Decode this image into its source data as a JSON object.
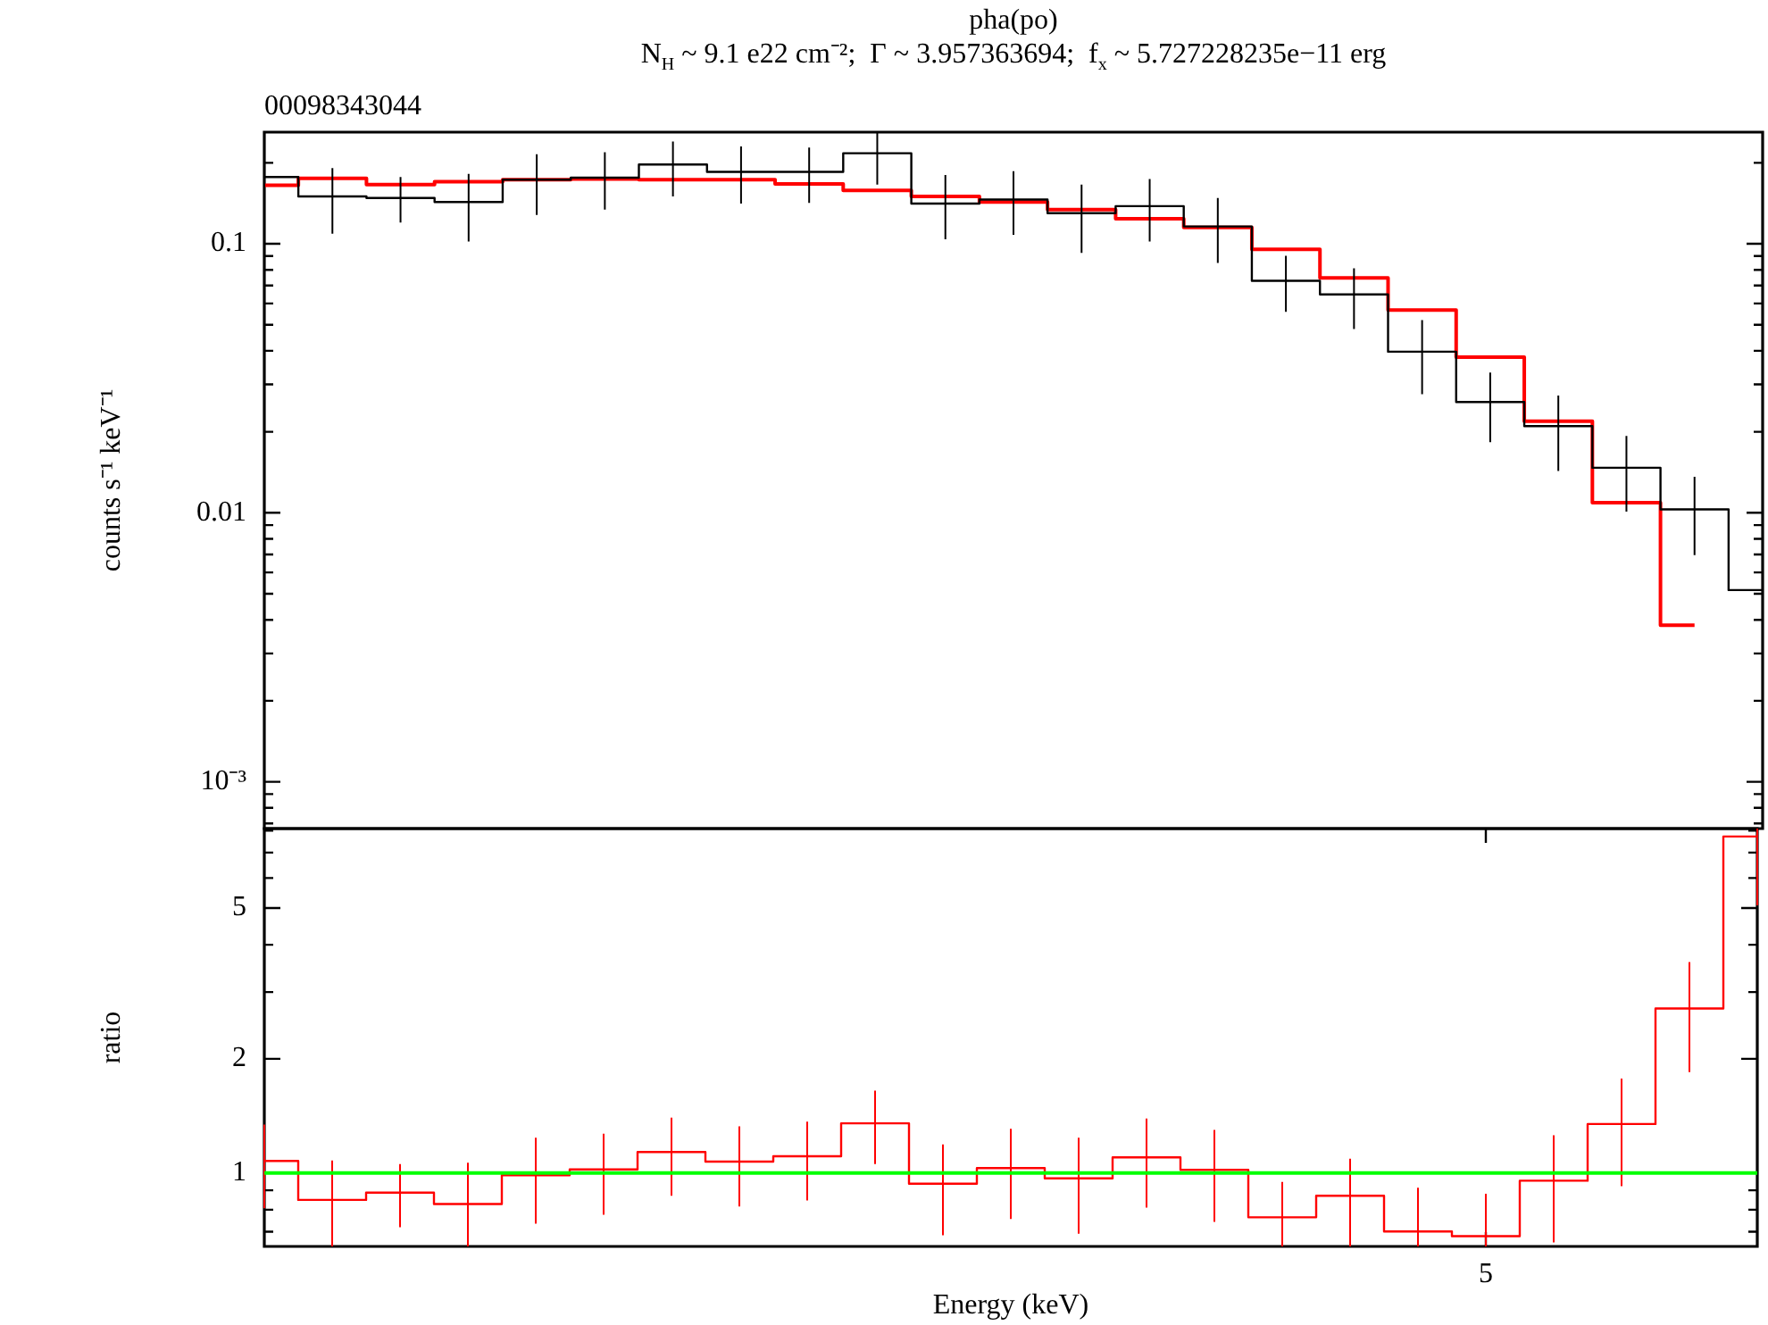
{
  "chart_data": [
    {
      "type": "step",
      "title": "pha(po)",
      "subtitle": "N$_{H}$ ~ 9.1 e22 cm⁻²;  Γ ~ 3.957363694;  f$_{x}$ ~ 5.727228235e−11 erg",
      "annotations": [
        "00098343044"
      ],
      "ylabel": "counts s⁻¹ keV⁻¹",
      "categories": [
        null,
        null,
        null,
        null,
        null,
        null,
        null,
        null,
        null,
        null,
        null,
        null,
        null,
        null,
        null,
        null,
        null,
        null,
        null,
        null,
        null,
        null,
        null
      ],
      "series": [
        {
          "color": "#000000",
          "values": [
            0.177,
            0.15,
            0.148,
            0.143,
            0.173,
            0.176,
            0.197,
            0.185,
            0.185,
            0.217,
            0.141,
            0.146,
            0.13,
            0.138,
            0.116,
            0.0728,
            0.0648,
            0.0397,
            0.0258,
            0.021,
            0.0147,
            0.0103,
            0.00516
          ],
          "errors": [
            [
              0.132,
              0.22
            ],
            [
              0.109,
              0.191
            ],
            [
              0.12,
              0.177
            ],
            [
              0.102,
              0.182
            ],
            [
              0.128,
              0.215
            ],
            [
              0.134,
              0.219
            ],
            [
              0.15,
              0.24
            ],
            [
              0.141,
              0.23
            ],
            [
              0.142,
              0.228
            ],
            [
              0.166,
              0.26
            ],
            [
              0.104,
              0.18
            ],
            [
              0.108,
              0.186
            ],
            [
              0.0925,
              0.166
            ],
            [
              0.102,
              0.174
            ],
            [
              0.0849,
              0.148
            ],
            [
              0.0558,
              0.0903
            ],
            [
              0.0482,
              0.0811
            ],
            [
              0.0276,
              0.052
            ],
            [
              0.0183,
              0.0332
            ],
            [
              0.0143,
              0.0273
            ],
            [
              0.0101,
              0.0193
            ],
            [
              0.00696,
              0.0136
            ],
            [
              0.0034,
              0.0069
            ]
          ]
        },
        {
          "color": "#ff0000",
          "values": [
            0.165,
            0.175,
            0.166,
            0.17,
            0.173,
            0.174,
            0.173,
            0.173,
            0.167,
            0.158,
            0.15,
            0.143,
            0.134,
            0.124,
            0.115,
            0.0954,
            0.0746,
            0.0567,
            0.0379,
            0.0219,
            0.0109,
            0.00382,
            null
          ]
        }
      ],
      "ylim": [
        0.00067,
        0.26
      ],
      "yticks": [
        {
          "value": 0.0007,
          "label": null
        },
        {
          "value": 0.0008,
          "label": null
        },
        {
          "value": 0.0009,
          "label": null
        },
        {
          "value": 0.001,
          "label": "10⁻³"
        },
        {
          "value": 0.002,
          "label": null
        },
        {
          "value": 0.003,
          "label": null
        },
        {
          "value": 0.004,
          "label": null
        },
        {
          "value": 0.005,
          "label": null
        },
        {
          "value": 0.006,
          "label": null
        },
        {
          "value": 0.007,
          "label": null
        },
        {
          "value": 0.008,
          "label": null
        },
        {
          "value": 0.009,
          "label": null
        },
        0.01,
        {
          "value": 0.02,
          "label": null
        },
        {
          "value": 0.03,
          "label": null
        },
        {
          "value": 0.04,
          "label": null
        },
        {
          "value": 0.05,
          "label": null
        },
        {
          "value": 0.06,
          "label": null
        },
        {
          "value": 0.07,
          "label": null
        },
        {
          "value": 0.08,
          "label": null
        },
        {
          "value": 0.09,
          "label": null
        },
        0.1,
        {
          "value": 0.2,
          "label": null
        }
      ],
      "log": "y",
      "tick_labels": "y"
    },
    {
      "type": "step",
      "xlabel": "Energy (keV)",
      "ylabel": "ratio",
      "categories": [
        null,
        null,
        null,
        null,
        null,
        null,
        null,
        null,
        null,
        null,
        null,
        null,
        null,
        null,
        null,
        null,
        null,
        null,
        "5",
        null,
        null,
        null,
        null
      ],
      "series": [
        {
          "color": "#ff0000",
          "values": [
            1.076,
            0.849,
            0.887,
            0.828,
            0.986,
            1.022,
            1.136,
            1.071,
            1.107,
            1.352,
            0.937,
            1.03,
            0.968,
            1.099,
            1.019,
            0.764,
            0.871,
            0.701,
            0.681,
            0.954,
            1.346,
            2.715,
            7.72
          ],
          "errors": [
            [
              0.807,
              1.342
            ],
            [
              0.64,
              1.079
            ],
            [
              0.719,
              1.056
            ],
            [
              0.64,
              1.064
            ],
            [
              0.735,
              1.239
            ],
            [
              0.776,
              1.27
            ],
            [
              0.871,
              1.4
            ],
            [
              0.816,
              1.327
            ],
            [
              0.846,
              1.366
            ],
            [
              1.056,
              1.65
            ],
            [
              0.685,
              1.19
            ],
            [
              0.756,
              1.308
            ],
            [
              0.691,
              1.239
            ],
            [
              0.81,
              1.391
            ],
            [
              0.743,
              1.299
            ],
            [
              0.64,
              0.947
            ],
            [
              0.64,
              1.091
            ],
            [
              0.64,
              0.914
            ],
            [
              0.64,
              0.881
            ],
            [
              0.656,
              1.257
            ],
            [
              0.923,
              1.775
            ],
            [
              1.846,
              3.6
            ],
            [
              5.08,
              8.1
            ]
          ]
        }
      ],
      "ylim": [
        0.64,
        8.1
      ],
      "yticks": [
        {
          "value": 0.7,
          "label": null
        },
        {
          "value": 0.8,
          "label": null
        },
        {
          "value": 0.9,
          "label": null
        },
        1,
        2,
        {
          "value": 3,
          "label": null
        },
        {
          "value": 4,
          "label": null
        },
        5,
        {
          "value": 6,
          "label": null
        },
        {
          "value": 7,
          "label": null
        },
        {
          "value": 8,
          "label": null
        }
      ],
      "log": "y",
      "ref_lines": [
        {
          "axis": "y",
          "value": 1,
          "color": "#00ff00"
        }
      ]
    }
  ]
}
